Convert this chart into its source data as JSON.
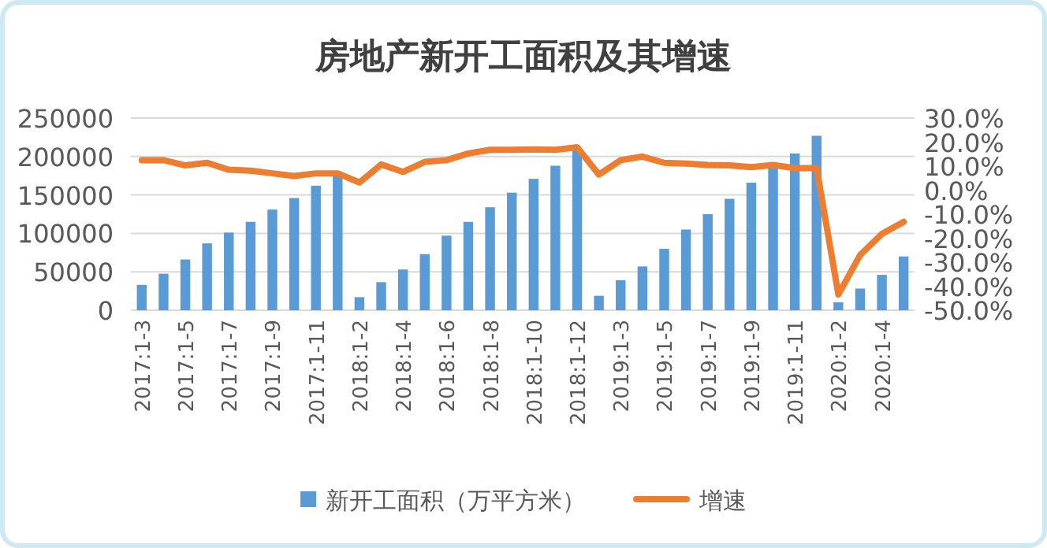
{
  "chart_data": {
    "type": "bar",
    "title": "房地产新开工面积及其增速",
    "categories": [
      "2017:1-3",
      null,
      "2017:1-5",
      null,
      "2017:1-7",
      null,
      "2017:1-9",
      null,
      "2017:1-11",
      null,
      "2018:1-2",
      null,
      "2018:1-4",
      null,
      "2018:1-6",
      null,
      "2018:1-8",
      null,
      "2018:1-10",
      null,
      "2018:1-12",
      null,
      "2019:1-3",
      null,
      "2019:1-5",
      null,
      "2019:1-7",
      null,
      "2019:1-9",
      null,
      "2019:1-11",
      null,
      "2020:1-2",
      null,
      "2020:1-4",
      null
    ],
    "series": [
      {
        "name": "新开工面积（万平方米）",
        "color": "#5b9bd5",
        "values": [
          33000,
          47500,
          66000,
          87000,
          101000,
          115000,
          131000,
          146000,
          162000,
          178600,
          17000,
          36500,
          53000,
          73000,
          97000,
          115000,
          134000,
          153000,
          171000,
          188000,
          209300,
          18800,
          39000,
          57000,
          80000,
          105000,
          125000,
          145000,
          166000,
          185000,
          204000,
          227000,
          10400,
          28200,
          46000,
          70000
        ]
      },
      {
        "name": "增速",
        "type": "line",
        "axis": "y2",
        "color": "#ed7d31",
        "values": [
          12.5,
          12.5,
          10.3,
          11.4,
          8.5,
          8.1,
          7.0,
          5.9,
          7.0,
          7.0,
          3.2,
          10.7,
          7.6,
          11.8,
          12.5,
          15.3,
          16.8,
          16.8,
          17.0,
          16.8,
          17.9,
          6.5,
          12.5,
          14.0,
          11.4,
          11.1,
          10.5,
          10.3,
          9.6,
          10.5,
          9.2,
          9.2,
          -43.5,
          -27.0,
          -18.2,
          -13.2
        ]
      }
    ],
    "ylim": [
      0,
      250000
    ],
    "yticks": [
      0,
      50000,
      100000,
      150000,
      200000,
      250000
    ],
    "y2lim": [
      -50,
      30
    ],
    "y2ticks": [
      {
        "value": -50,
        "label": "-50.0%"
      },
      {
        "value": -40,
        "label": "-40.0%"
      },
      {
        "value": -30,
        "label": "-30.0%"
      },
      {
        "value": -20,
        "label": "-20.0%"
      },
      {
        "value": -10,
        "label": "-10.0%"
      },
      {
        "value": 0,
        "label": "0.0%"
      },
      {
        "value": 10,
        "label": "10.0%"
      },
      {
        "value": 20,
        "label": "20.0%"
      },
      {
        "value": 30,
        "label": "30.0%"
      }
    ],
    "grid": "y",
    "legend": "bottom"
  }
}
